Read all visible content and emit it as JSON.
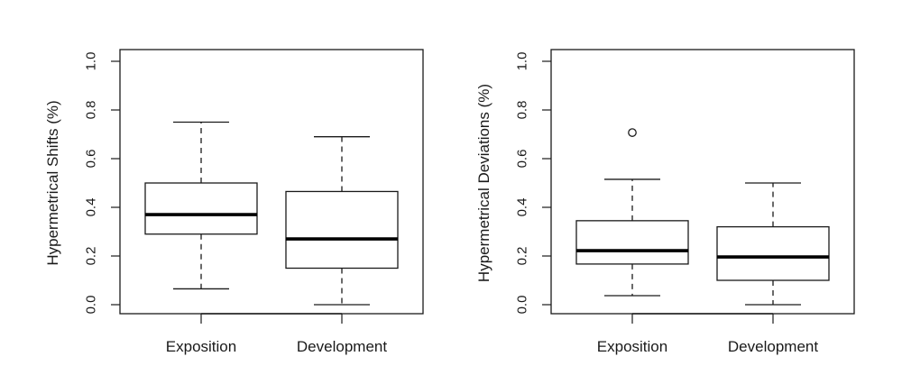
{
  "chart_data": [
    {
      "type": "box",
      "title": "",
      "xlabel": "",
      "ylabel": "Hypermetrical Shifts (%)",
      "ylim": [
        0.0,
        1.0
      ],
      "yticks": [
        "0.0",
        "0.2",
        "0.4",
        "0.6",
        "0.8",
        "1.0"
      ],
      "grid": false,
      "legend": null,
      "categories": [
        "Exposition",
        "Development"
      ],
      "boxes": [
        {
          "name": "Exposition",
          "whisker_low": 0.065,
          "q1": 0.29,
          "median": 0.37,
          "q3": 0.5,
          "whisker_high": 0.75,
          "outliers": []
        },
        {
          "name": "Development",
          "whisker_low": 0.0,
          "q1": 0.15,
          "median": 0.27,
          "q3": 0.465,
          "whisker_high": 0.69,
          "outliers": []
        }
      ]
    },
    {
      "type": "box",
      "title": "",
      "xlabel": "",
      "ylabel": "Hypermetrical Deviations (%)",
      "ylim": [
        0.0,
        1.0
      ],
      "yticks": [
        "0.0",
        "0.2",
        "0.4",
        "0.6",
        "0.8",
        "1.0"
      ],
      "grid": false,
      "legend": null,
      "categories": [
        "Exposition",
        "Development"
      ],
      "boxes": [
        {
          "name": "Exposition",
          "whisker_low": 0.037,
          "q1": 0.167,
          "median": 0.222,
          "q3": 0.345,
          "whisker_high": 0.515,
          "outliers": [
            0.707
          ]
        },
        {
          "name": "Development",
          "whisker_low": 0.0,
          "q1": 0.1,
          "median": 0.196,
          "q3": 0.32,
          "whisker_high": 0.5,
          "outliers": []
        }
      ]
    }
  ],
  "style": {
    "line_color": "#1a1a1a",
    "background": "#ffffff"
  }
}
